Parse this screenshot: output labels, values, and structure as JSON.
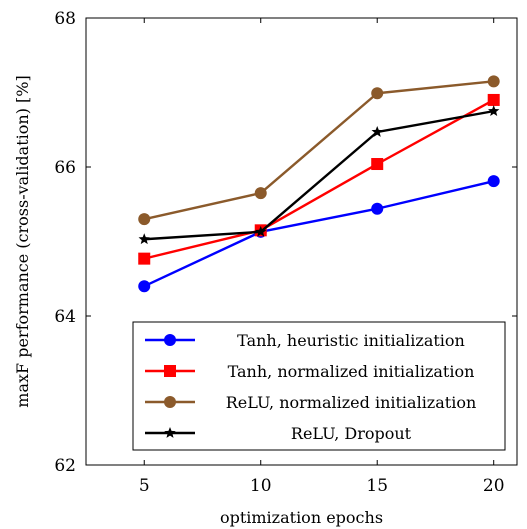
{
  "chart_data": {
    "type": "line",
    "title": "",
    "xlabel": "optimization epochs",
    "ylabel": "maxF performance (cross-validation) [%]",
    "x": [
      5,
      10,
      15,
      20
    ],
    "xlim": [
      2.5,
      21
    ],
    "ylim": [
      62,
      68
    ],
    "xticks": [
      "5",
      "10",
      "15",
      "20"
    ],
    "yticks": [
      "62",
      "64",
      "66",
      "68"
    ],
    "grid": false,
    "legend_position": "bottom-right",
    "series": [
      {
        "name": "Tanh, heuristic initialization",
        "color": "#0000ff",
        "marker": "circle",
        "values": [
          64.4,
          65.13,
          65.44,
          65.81
        ]
      },
      {
        "name": "Tanh, normalized initialization",
        "color": "#ff0000",
        "marker": "square",
        "values": [
          64.77,
          65.15,
          66.04,
          66.9
        ]
      },
      {
        "name": "ReLU, normalized initialization",
        "color": "#8b5a2b",
        "marker": "circle",
        "values": [
          65.3,
          65.65,
          66.99,
          67.15
        ]
      },
      {
        "name": "ReLU, Dropout",
        "color": "#000000",
        "marker": "star",
        "values": [
          65.03,
          65.13,
          66.47,
          66.75
        ]
      }
    ]
  }
}
